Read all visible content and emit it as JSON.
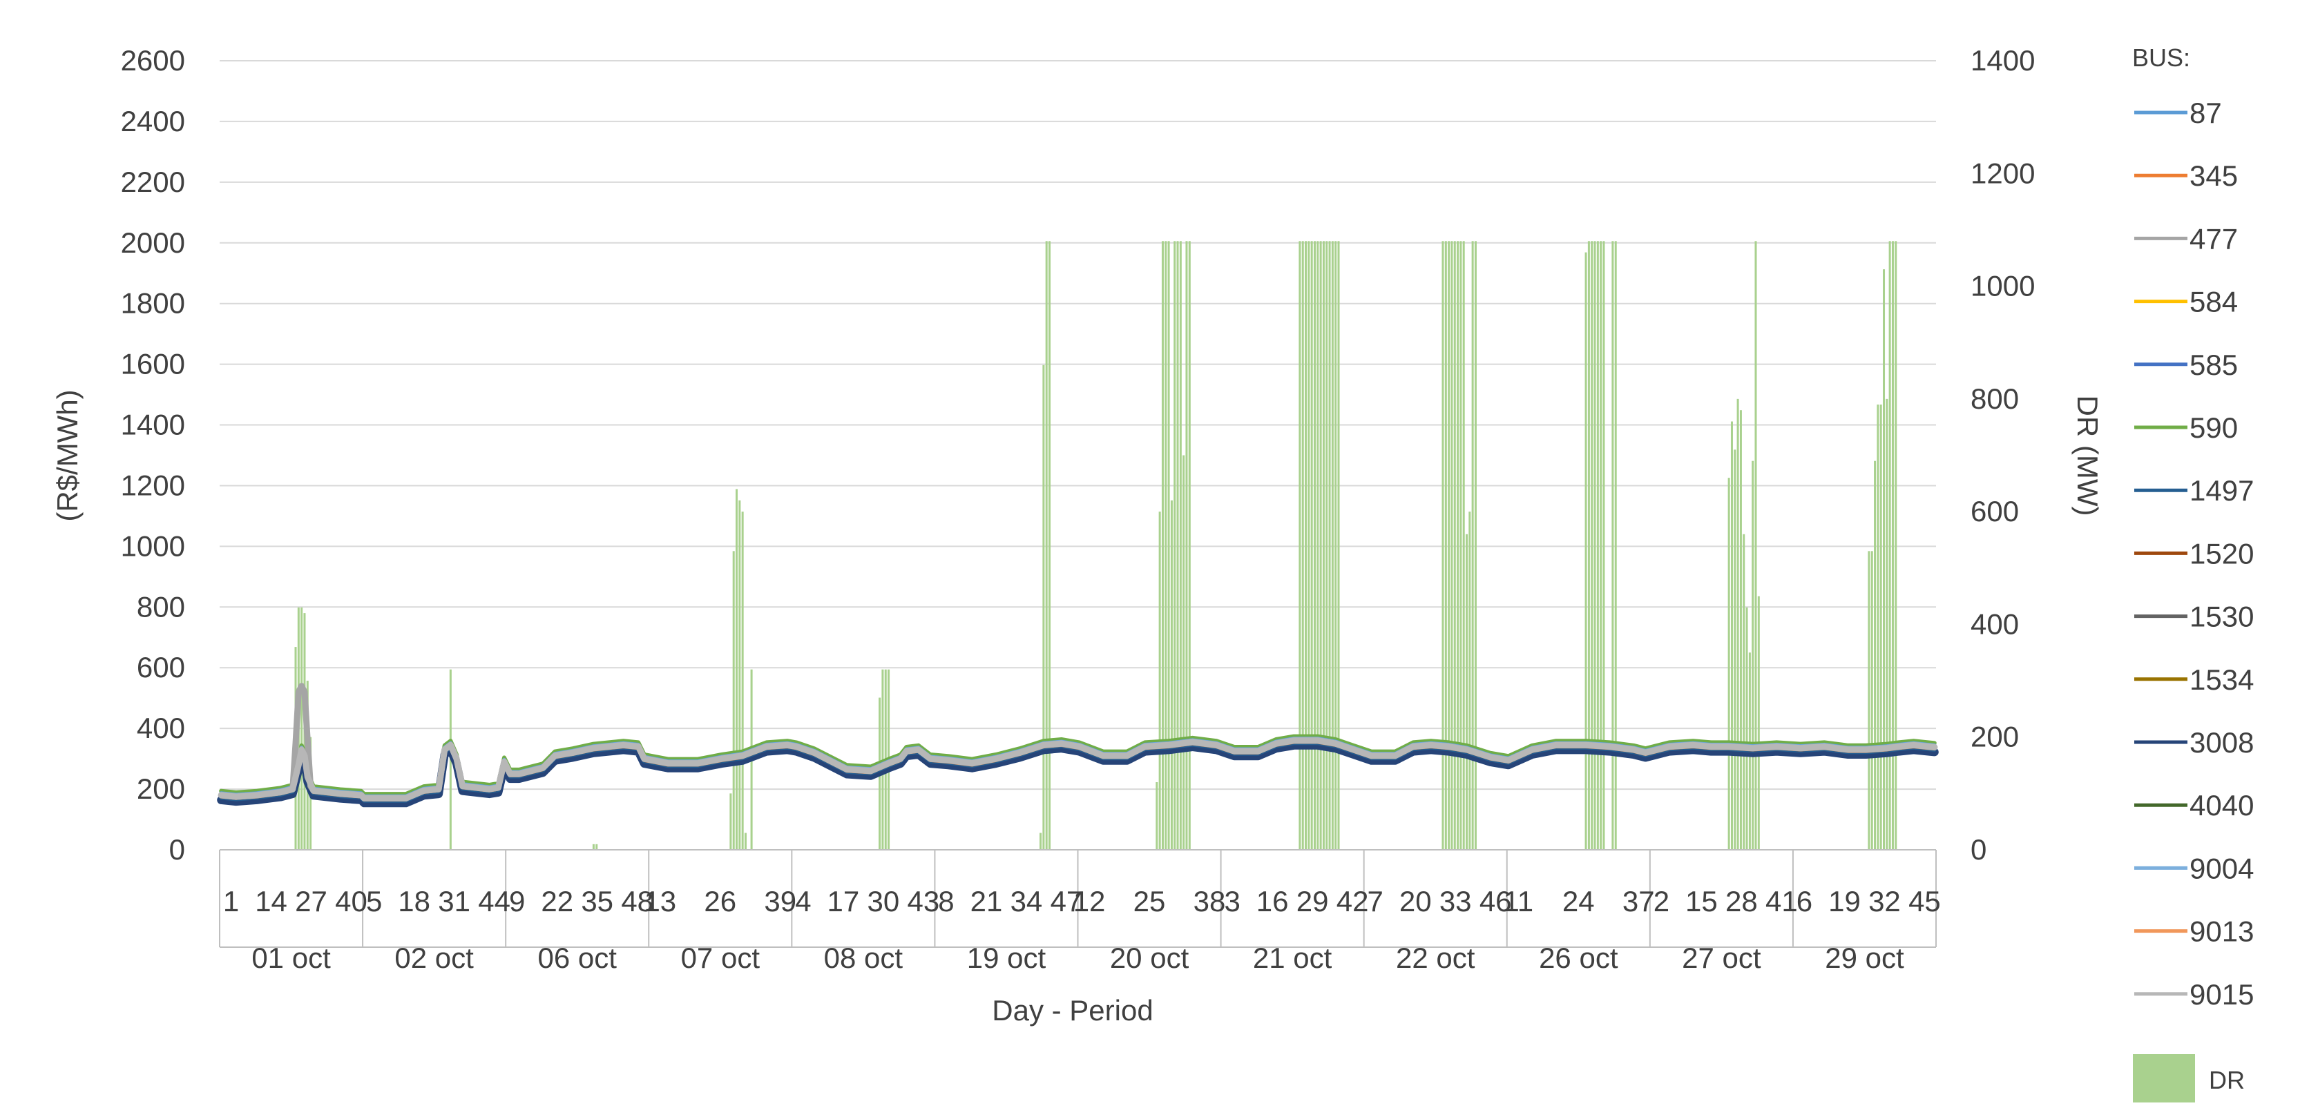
{
  "chart_data": {
    "type": "line",
    "xlabel": "Day - Period",
    "ylabel": "(R$/MWh)",
    "y2label": "DR (MW)",
    "ylim": [
      0,
      2600
    ],
    "y2lim": [
      0,
      1400
    ],
    "yticks": [
      "0",
      "200",
      "400",
      "600",
      "800",
      "1000",
      "1200",
      "1400",
      "1600",
      "1800",
      "2000",
      "2200",
      "2400",
      "2600"
    ],
    "y2ticks": [
      "0",
      "200",
      "400",
      "600",
      "800",
      "1000",
      "1200",
      "1400"
    ],
    "grid": true,
    "legend_position": "right",
    "legend_title": "BUS:",
    "periods_per_day": 48,
    "days": [
      {
        "label": "01 oct",
        "ticks": [
          "1",
          "14",
          "27",
          "40"
        ]
      },
      {
        "label": "02 oct",
        "ticks": [
          "5",
          "18",
          "31",
          "44"
        ]
      },
      {
        "label": "06 oct",
        "ticks": [
          "9",
          "22",
          "35",
          "48"
        ]
      },
      {
        "label": "07 oct",
        "ticks": [
          "13",
          "26",
          "39"
        ]
      },
      {
        "label": "08 oct",
        "ticks": [
          "4",
          "17",
          "30",
          "43"
        ]
      },
      {
        "label": "19 oct",
        "ticks": [
          "8",
          "21",
          "34",
          "47"
        ]
      },
      {
        "label": "20 oct",
        "ticks": [
          "12",
          "25",
          "38"
        ]
      },
      {
        "label": "21 oct",
        "ticks": [
          "3",
          "16",
          "29",
          "42"
        ]
      },
      {
        "label": "22 oct",
        "ticks": [
          "7",
          "20",
          "33",
          "46"
        ]
      },
      {
        "label": "26 oct",
        "ticks": [
          "11",
          "24",
          "37"
        ]
      },
      {
        "label": "27 oct",
        "ticks": [
          "2",
          "15",
          "28",
          "41"
        ]
      },
      {
        "label": "29 oct",
        "ticks": [
          "6",
          "19",
          "32",
          "45"
        ]
      }
    ],
    "series": [
      {
        "name": "87",
        "color": "#5B9BD5"
      },
      {
        "name": "345",
        "color": "#ED7D31"
      },
      {
        "name": "477",
        "color": "#A5A5A5"
      },
      {
        "name": "584",
        "color": "#FFC000"
      },
      {
        "name": "585",
        "color": "#4472C4"
      },
      {
        "name": "590",
        "color": "#70AD47"
      },
      {
        "name": "1497",
        "color": "#255E91"
      },
      {
        "name": "1520",
        "color": "#9E480E"
      },
      {
        "name": "1530",
        "color": "#636363"
      },
      {
        "name": "1534",
        "color": "#997300"
      },
      {
        "name": "3008",
        "color": "#264478"
      },
      {
        "name": "4040",
        "color": "#43682B"
      },
      {
        "name": "9004",
        "color": "#7CAFDD"
      },
      {
        "name": "9013",
        "color": "#F1975A"
      },
      {
        "name": "9015",
        "color": "#B7B7B7"
      }
    ],
    "dr_series": {
      "name": "DR",
      "color": "#A9D18E"
    },
    "price_profile": [
      [
        0,
        180
      ],
      [
        5,
        175
      ],
      [
        12,
        180
      ],
      [
        20,
        190
      ],
      [
        24,
        200
      ],
      [
        26,
        280
      ],
      [
        27,
        330
      ],
      [
        28,
        310
      ],
      [
        29,
        240
      ],
      [
        31,
        195
      ],
      [
        40,
        185
      ],
      [
        47,
        180
      ],
      [
        48,
        170
      ],
      [
        62,
        170
      ],
      [
        68,
        195
      ],
      [
        73,
        200
      ],
      [
        75,
        330
      ],
      [
        77,
        345
      ],
      [
        79,
        300
      ],
      [
        81,
        210
      ],
      [
        90,
        200
      ],
      [
        93,
        205
      ],
      [
        95,
        290
      ],
      [
        97,
        250
      ],
      [
        100,
        250
      ],
      [
        108,
        270
      ],
      [
        112,
        310
      ],
      [
        118,
        320
      ],
      [
        125,
        335
      ],
      [
        135,
        345
      ],
      [
        140,
        340
      ],
      [
        142,
        300
      ],
      [
        150,
        285
      ],
      [
        160,
        285
      ],
      [
        168,
        300
      ],
      [
        175,
        310
      ],
      [
        183,
        340
      ],
      [
        190,
        345
      ],
      [
        193,
        340
      ],
      [
        199,
        320
      ],
      [
        210,
        265
      ],
      [
        218,
        260
      ],
      [
        224,
        285
      ],
      [
        228,
        300
      ],
      [
        230,
        325
      ],
      [
        234,
        330
      ],
      [
        238,
        300
      ],
      [
        244,
        295
      ],
      [
        252,
        285
      ],
      [
        260,
        300
      ],
      [
        268,
        320
      ],
      [
        276,
        345
      ],
      [
        282,
        350
      ],
      [
        288,
        340
      ],
      [
        296,
        310
      ],
      [
        304,
        310
      ],
      [
        310,
        340
      ],
      [
        318,
        345
      ],
      [
        326,
        355
      ],
      [
        334,
        345
      ],
      [
        340,
        325
      ],
      [
        348,
        325
      ],
      [
        354,
        350
      ],
      [
        360,
        360
      ],
      [
        368,
        360
      ],
      [
        374,
        350
      ],
      [
        380,
        330
      ],
      [
        386,
        310
      ],
      [
        394,
        310
      ],
      [
        400,
        340
      ],
      [
        406,
        345
      ],
      [
        412,
        340
      ],
      [
        418,
        330
      ],
      [
        426,
        305
      ],
      [
        432,
        295
      ],
      [
        440,
        330
      ],
      [
        448,
        345
      ],
      [
        458,
        345
      ],
      [
        466,
        340
      ],
      [
        474,
        330
      ],
      [
        478,
        320
      ],
      [
        486,
        340
      ],
      [
        494,
        345
      ],
      [
        500,
        340
      ],
      [
        506,
        340
      ],
      [
        514,
        335
      ],
      [
        522,
        340
      ],
      [
        530,
        335
      ],
      [
        538,
        340
      ],
      [
        546,
        330
      ],
      [
        552,
        330
      ],
      [
        559,
        335
      ],
      [
        563,
        340
      ],
      [
        568,
        345
      ],
      [
        575,
        338
      ]
    ],
    "price_spike_477": [
      [
        24,
        200
      ],
      [
        25,
        350
      ],
      [
        26,
        520
      ],
      [
        27,
        540
      ],
      [
        28,
        520
      ],
      [
        29,
        360
      ],
      [
        30,
        210
      ]
    ],
    "dr_bars": [
      [
        25,
        360
      ],
      [
        26,
        430
      ],
      [
        27,
        430
      ],
      [
        28,
        420
      ],
      [
        29,
        300
      ],
      [
        30,
        200
      ],
      [
        77,
        320
      ],
      [
        125,
        10
      ],
      [
        126,
        10
      ],
      [
        171,
        100
      ],
      [
        172,
        530
      ],
      [
        173,
        640
      ],
      [
        174,
        620
      ],
      [
        175,
        600
      ],
      [
        176,
        30
      ],
      [
        178,
        320
      ],
      [
        221,
        270
      ],
      [
        222,
        320
      ],
      [
        223,
        320
      ],
      [
        224,
        320
      ],
      [
        275,
        30
      ],
      [
        276,
        860
      ],
      [
        277,
        1080
      ],
      [
        278,
        1080
      ],
      [
        314,
        120
      ],
      [
        315,
        600
      ],
      [
        316,
        1080
      ],
      [
        317,
        1080
      ],
      [
        318,
        1080
      ],
      [
        319,
        620
      ],
      [
        320,
        1080
      ],
      [
        321,
        1080
      ],
      [
        322,
        1080
      ],
      [
        323,
        700
      ],
      [
        324,
        1080
      ],
      [
        325,
        1080
      ],
      [
        362,
        1080
      ],
      [
        363,
        1080
      ],
      [
        364,
        1080
      ],
      [
        365,
        1080
      ],
      [
        366,
        1080
      ],
      [
        367,
        1080
      ],
      [
        368,
        1080
      ],
      [
        369,
        1080
      ],
      [
        370,
        1080
      ],
      [
        371,
        1080
      ],
      [
        372,
        1080
      ],
      [
        373,
        1080
      ],
      [
        374,
        1080
      ],
      [
        375,
        1080
      ],
      [
        410,
        1080
      ],
      [
        411,
        1080
      ],
      [
        412,
        1080
      ],
      [
        413,
        1080
      ],
      [
        414,
        1080
      ],
      [
        415,
        1080
      ],
      [
        416,
        1080
      ],
      [
        417,
        1080
      ],
      [
        418,
        560
      ],
      [
        419,
        600
      ],
      [
        420,
        1080
      ],
      [
        421,
        1080
      ],
      [
        458,
        1060
      ],
      [
        459,
        1080
      ],
      [
        460,
        1080
      ],
      [
        461,
        1080
      ],
      [
        462,
        1080
      ],
      [
        463,
        1080
      ],
      [
        464,
        1080
      ],
      [
        467,
        1080
      ],
      [
        468,
        1080
      ],
      [
        506,
        660
      ],
      [
        507,
        760
      ],
      [
        508,
        710
      ],
      [
        509,
        800
      ],
      [
        510,
        780
      ],
      [
        511,
        560
      ],
      [
        512,
        430
      ],
      [
        513,
        350
      ],
      [
        514,
        690
      ],
      [
        515,
        1080
      ],
      [
        516,
        450
      ],
      [
        553,
        530
      ],
      [
        554,
        530
      ],
      [
        555,
        690
      ],
      [
        556,
        790
      ],
      [
        557,
        790
      ],
      [
        558,
        1030
      ],
      [
        559,
        800
      ],
      [
        560,
        1080
      ],
      [
        561,
        1080
      ],
      [
        562,
        1080
      ]
    ]
  }
}
